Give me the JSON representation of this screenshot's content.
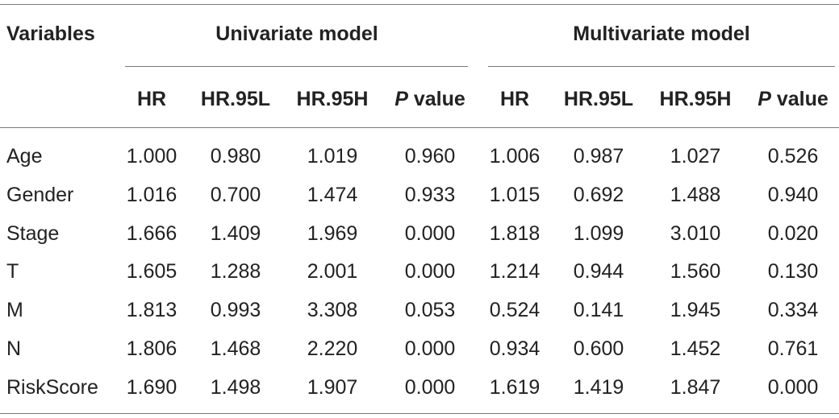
{
  "header": {
    "variables": "Variables",
    "univariate": "Univariate model",
    "multivariate": "Multivariate model",
    "columns": [
      "HR",
      "HR.95L",
      "HR.95H",
      "P value",
      "HR",
      "HR.95L",
      "HR.95H",
      "P value"
    ]
  },
  "p_italic": "P",
  "p_rest": " value",
  "rows": [
    {
      "label": "Age",
      "values": [
        "1.000",
        "0.980",
        "1.019",
        "0.960",
        "1.006",
        "0.987",
        "1.027",
        "0.526"
      ]
    },
    {
      "label": "Gender",
      "values": [
        "1.016",
        "0.700",
        "1.474",
        "0.933",
        "1.015",
        "0.692",
        "1.488",
        "0.940"
      ]
    },
    {
      "label": "Stage",
      "values": [
        "1.666",
        "1.409",
        "1.969",
        "0.000",
        "1.818",
        "1.099",
        "3.010",
        "0.020"
      ]
    },
    {
      "label": "T",
      "values": [
        "1.605",
        "1.288",
        "2.001",
        "0.000",
        "1.214",
        "0.944",
        "1.560",
        "0.130"
      ]
    },
    {
      "label": "M",
      "values": [
        "1.813",
        "0.993",
        "3.308",
        "0.053",
        "0.524",
        "0.141",
        "1.945",
        "0.334"
      ]
    },
    {
      "label": "N",
      "values": [
        "1.806",
        "1.468",
        "2.220",
        "0.000",
        "0.934",
        "0.600",
        "1.452",
        "0.761"
      ]
    },
    {
      "label": "RiskScore",
      "values": [
        "1.690",
        "1.498",
        "1.907",
        "0.000",
        "1.619",
        "1.419",
        "1.847",
        "0.000"
      ]
    }
  ]
}
